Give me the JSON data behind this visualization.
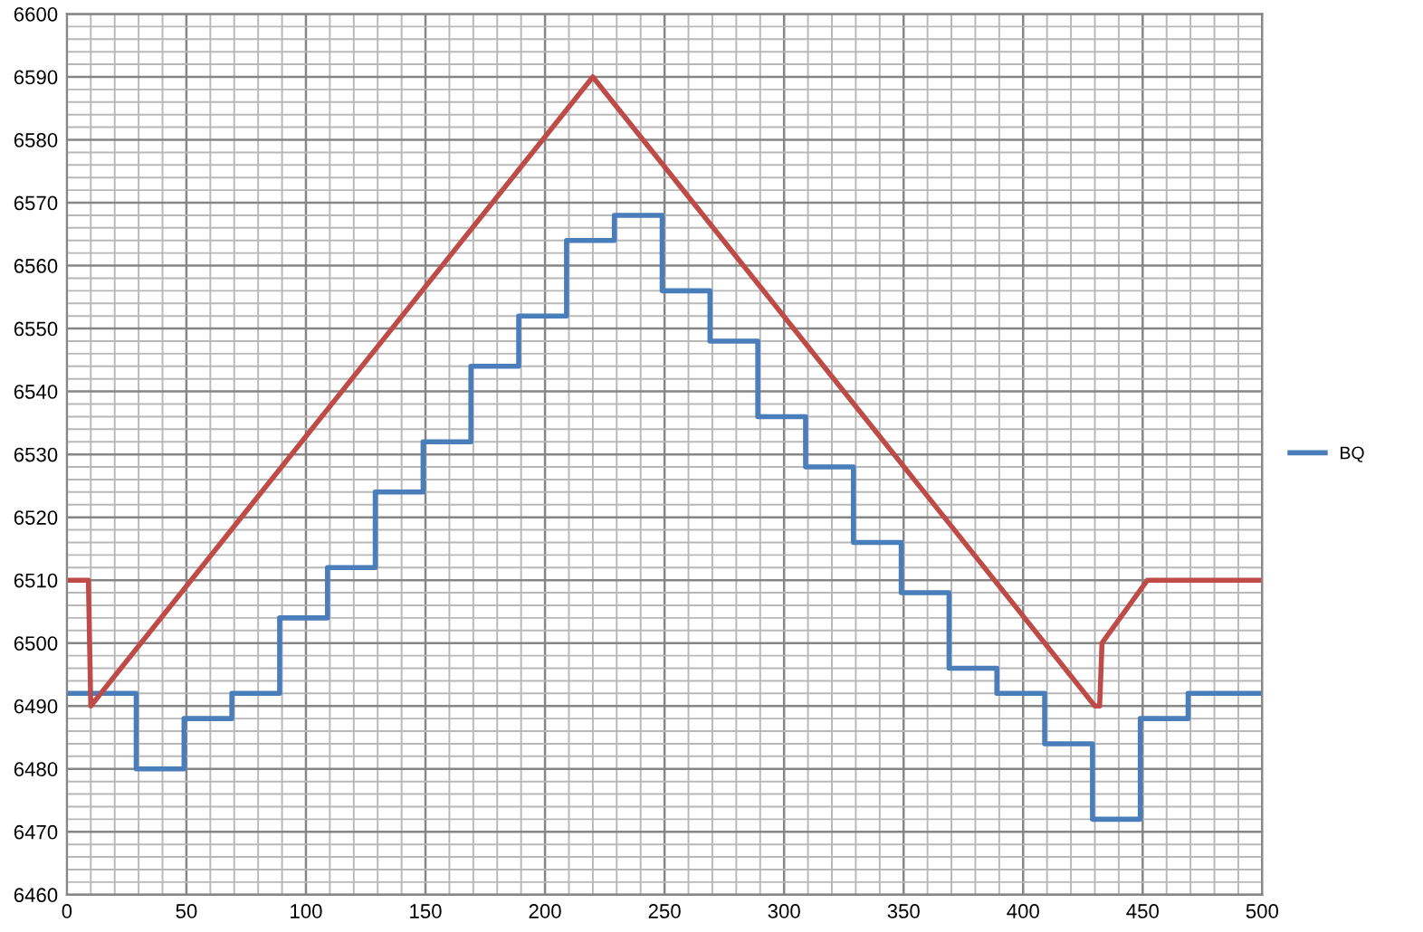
{
  "chart_data": {
    "type": "line",
    "xlim": [
      0,
      500
    ],
    "ylim": [
      6460,
      6600
    ],
    "xticks": [
      0,
      50,
      100,
      150,
      200,
      250,
      300,
      350,
      400,
      450,
      500
    ],
    "yticks": [
      6460,
      6470,
      6480,
      6490,
      6500,
      6510,
      6520,
      6530,
      6540,
      6550,
      6560,
      6570,
      6580,
      6590,
      6600
    ],
    "grid": true,
    "legend": "right",
    "series": [
      {
        "name": "BQ",
        "type": "step",
        "color": "#4a7ebb",
        "x": [
          0,
          29,
          49,
          69,
          89,
          109,
          129,
          149,
          169,
          189,
          209,
          229,
          249,
          269,
          289,
          309,
          329,
          349,
          369,
          389,
          409,
          429,
          449,
          469,
          500
        ],
        "values": [
          6492,
          6480,
          6488,
          6492,
          6504,
          6512,
          6524,
          6532,
          6544,
          6552,
          6564,
          6568,
          6556,
          6548,
          6536,
          6528,
          6516,
          6508,
          6496,
          6492,
          6484,
          6472,
          6488,
          6492,
          6492
        ]
      },
      {
        "color": "#be4b48",
        "x": [
          0,
          9,
          10,
          220,
          430,
          432,
          433,
          452,
          500
        ],
        "values": [
          6510,
          6510,
          6490,
          6590,
          6490,
          6490,
          6500,
          6510,
          6510
        ]
      }
    ]
  }
}
